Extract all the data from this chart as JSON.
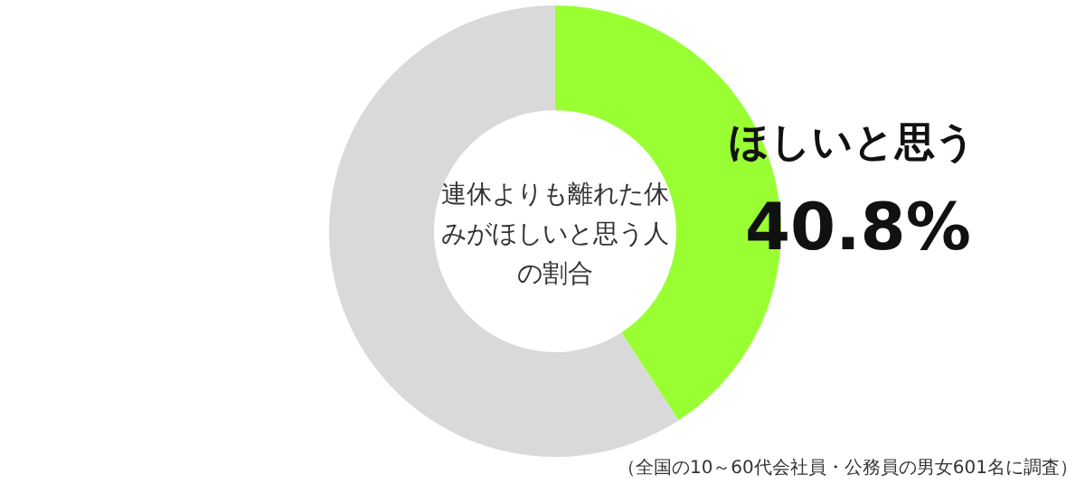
{
  "chart_data": {
    "type": "donut",
    "title": "連休よりも離れた休みがほしいと思う人の割合",
    "categories": [
      "ほしいと思う",
      null
    ],
    "values": [
      40.8,
      59.2
    ],
    "colors": [
      "#99ff33",
      "#d9d9d9"
    ],
    "value_labels": [
      "40.8%",
      null
    ],
    "annotations": [
      "（全国の10～60代会社員・公務員の男女601名に調査）"
    ]
  }
}
